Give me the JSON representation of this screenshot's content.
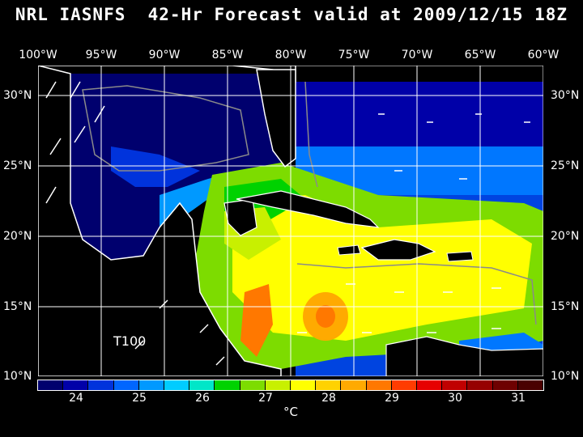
{
  "title": "NRL IASNFS  42-Hr Forecast valid at 2009/12/15 18Z",
  "longitude_labels": [
    "100°W",
    "95°W",
    "90°W",
    "85°W",
    "80°W",
    "75°W",
    "70°W",
    "65°W",
    "60°W"
  ],
  "latitude_labels": [
    "30°N",
    "25°N",
    "20°N",
    "15°N",
    "10°N"
  ],
  "region_label": "T100",
  "colorbar": {
    "labels": [
      "24",
      "25",
      "26",
      "27",
      "28",
      "29",
      "30",
      "31"
    ],
    "unit": "°C",
    "colors": [
      "#00006e",
      "#0000a8",
      "#0033dc",
      "#0066ff",
      "#0099ff",
      "#00ccff",
      "#00e6c8",
      "#00d200",
      "#7ddc00",
      "#c8f000",
      "#ffff00",
      "#ffd200",
      "#ffaa00",
      "#ff7800",
      "#ff3c00",
      "#e60000",
      "#c00000",
      "#960000",
      "#6e0000",
      "#4a0000"
    ]
  },
  "colors": {
    "land": "#000000",
    "coast": "#ffffff",
    "grid": "#ffffff",
    "depth_contour": "#8a8a8a"
  }
}
